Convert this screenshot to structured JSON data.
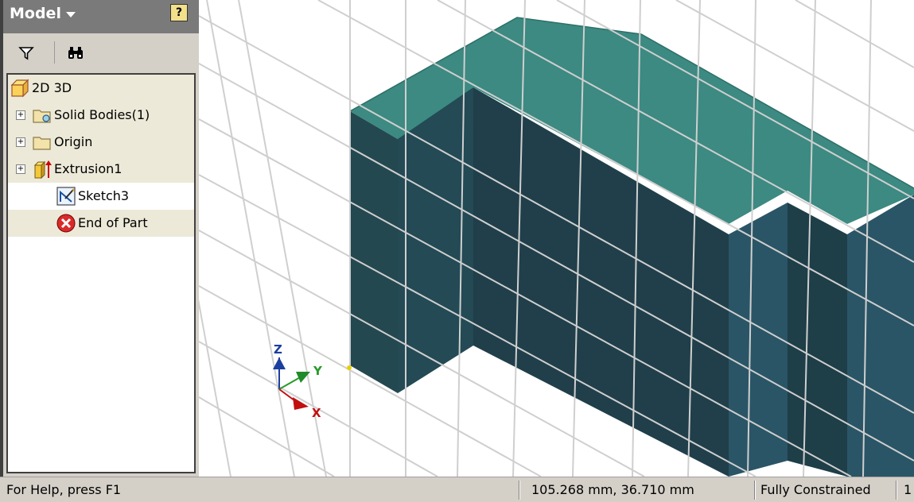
{
  "browser": {
    "title": "Model",
    "help_glyph": "?",
    "tree": [
      {
        "label": "2D 3D",
        "icon": "part-icon"
      },
      {
        "label": "Solid Bodies(1)",
        "icon": "solid-bodies-folder-icon",
        "expandable": true
      },
      {
        "label": "Origin",
        "icon": "folder-icon",
        "expandable": true
      },
      {
        "label": "Extrusion1",
        "icon": "extrusion-icon",
        "expandable": true
      },
      {
        "label": "Sketch3",
        "icon": "sketch-icon",
        "selected": true
      },
      {
        "label": "End of Part",
        "icon": "end-of-part-icon"
      }
    ]
  },
  "toolbar": {
    "filter_icon": "filter-icon",
    "find_icon": "binoculars-icon"
  },
  "viewport": {
    "axes": {
      "z": "Z",
      "y": "Y",
      "x": "X"
    },
    "colors": {
      "face_top": "#3c8a82",
      "face_front": "#234a55",
      "face_side": "#2a5566",
      "grid": "#cfcfcf"
    }
  },
  "statusbar": {
    "help": "For Help, press F1",
    "coords": "105.268 mm, 36.710 mm",
    "constraint": "Fully Constrained",
    "extra": "1"
  }
}
